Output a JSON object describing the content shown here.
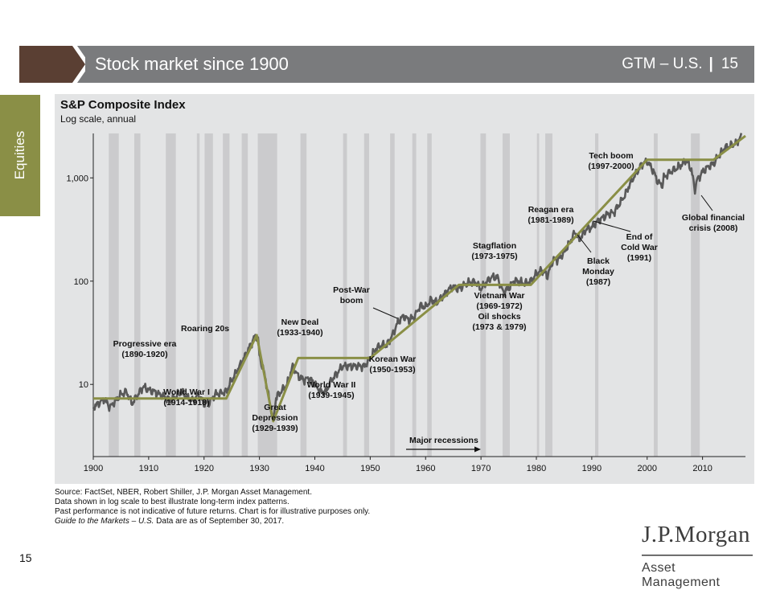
{
  "header": {
    "title": "Stock market since 1900",
    "section": "GTM – U.S.",
    "separator": "|",
    "slide_number": "15"
  },
  "side_tab": {
    "label": "Equities"
  },
  "chart_data": {
    "type": "line",
    "title": "S&P Composite Index",
    "subtitle": "Log scale, annual",
    "x_ticks": [
      "1900",
      "1910",
      "1920",
      "1930",
      "1940",
      "1950",
      "1960",
      "1970",
      "1980",
      "1990",
      "2000",
      "2010"
    ],
    "y_ticks": [
      {
        "value": 10,
        "label": "10"
      },
      {
        "value": 100,
        "label": "100"
      },
      {
        "value": 1000,
        "label": "1,000"
      }
    ],
    "y_scale": "log",
    "xlim": [
      1900,
      2017.75
    ],
    "ylim": [
      2.0,
      3000
    ],
    "grid": false,
    "recessions": [
      [
        1902.8,
        1904.6
      ],
      [
        1907.4,
        1908.5
      ],
      [
        1913.1,
        1914.9
      ],
      [
        1918.7,
        1919.2
      ],
      [
        1920.1,
        1921.6
      ],
      [
        1923.4,
        1924.6
      ],
      [
        1926.8,
        1927.9
      ],
      [
        1929.7,
        1933.2
      ],
      [
        1937.4,
        1938.5
      ],
      [
        1945.1,
        1945.8
      ],
      [
        1948.9,
        1949.8
      ],
      [
        1953.6,
        1954.4
      ],
      [
        1957.6,
        1958.3
      ],
      [
        1960.3,
        1961.1
      ],
      [
        1969.9,
        1970.9
      ],
      [
        1973.9,
        1975.2
      ],
      [
        1980.1,
        1980.5
      ],
      [
        1981.6,
        1982.9
      ],
      [
        1990.6,
        1991.2
      ],
      [
        2001.2,
        2001.9
      ],
      [
        2007.9,
        2009.5
      ]
    ],
    "index_series": {
      "name": "S&P Composite Index",
      "x": [
        1900,
        1902,
        1903,
        1905,
        1906,
        1907,
        1909,
        1910,
        1911,
        1913,
        1914,
        1916,
        1917,
        1918,
        1919,
        1920,
        1921,
        1922,
        1924,
        1925,
        1927,
        1929,
        1929.7,
        1930,
        1931,
        1932,
        1932.5,
        1933,
        1935,
        1936,
        1937,
        1938,
        1939,
        1940,
        1941,
        1942,
        1943,
        1945,
        1946,
        1947,
        1949,
        1950,
        1951,
        1952,
        1953,
        1954,
        1955,
        1956,
        1957,
        1958,
        1959,
        1960,
        1961,
        1962,
        1963,
        1964,
        1965,
        1966,
        1967,
        1968,
        1969,
        1970,
        1971,
        1972,
        1973,
        1974,
        1975,
        1976,
        1977,
        1978,
        1979,
        1980,
        1981,
        1982,
        1983,
        1984,
        1985,
        1986,
        1987,
        1987.8,
        1988,
        1989,
        1990,
        1991,
        1992,
        1993,
        1994,
        1995,
        1996,
        1997,
        1998,
        1999,
        2000,
        2001,
        2002,
        2002.8,
        2003,
        2004,
        2005,
        2006,
        2007,
        2008,
        2008.6,
        2009,
        2010,
        2011,
        2012,
        2013,
        2014,
        2015,
        2016,
        2017
      ],
      "y": [
        6.0,
        7.2,
        6.0,
        8.0,
        8.5,
        6.5,
        9.5,
        8.8,
        8.5,
        7.5,
        7.0,
        8.6,
        7.5,
        7.0,
        8.0,
        6.5,
        6.7,
        8.0,
        8.5,
        11.0,
        17.0,
        28.0,
        29.0,
        19.0,
        12.0,
        6.0,
        4.5,
        7.5,
        10.0,
        15.0,
        12.0,
        11.0,
        11.5,
        10.0,
        8.5,
        8.5,
        11.0,
        15.0,
        15.0,
        15.0,
        15.0,
        18.0,
        22.0,
        24.0,
        24.0,
        30.0,
        40.0,
        46.0,
        42.0,
        45.0,
        58.0,
        56.0,
        66.0,
        62.0,
        70.0,
        82.0,
        88.0,
        84.0,
        92.0,
        98.0,
        98.0,
        84.0,
        98.0,
        110.0,
        108.0,
        78.0,
        85.0,
        102.0,
        98.0,
        95.0,
        100.0,
        118.0,
        128.0,
        112.0,
        160.0,
        162.0,
        190.0,
        235.0,
        300.0,
        245.0,
        265.0,
        320.0,
        330.0,
        380.0,
        410.0,
        450.0,
        460.0,
        560.0,
        680.0,
        900.0,
        1100.0,
        1350.0,
        1450.0,
        1200.0,
        900.0,
        850.0,
        1000.0,
        1130.0,
        1210.0,
        1310.0,
        1480.0,
        1200.0,
        760.0,
        950.0,
        1140.0,
        1280.0,
        1380.0,
        1650.0,
        1950.0,
        2050.0,
        2150.0,
        2500.0
      ]
    },
    "trend_line": {
      "x": [
        1900,
        1924,
        1929.5,
        1932.5,
        1937,
        1950,
        1966,
        1979,
        2000,
        2012,
        2017.75
      ],
      "y": [
        7.3,
        7.3,
        30,
        4.4,
        18,
        18,
        92,
        92,
        1500,
        1500,
        2550
      ]
    },
    "annotations": [
      {
        "lines": [
          "Progressive era",
          "(1890-1920)"
        ]
      },
      {
        "lines": [
          "World War I",
          "(1914-1918)"
        ]
      },
      {
        "lines": [
          "Roaring 20s"
        ]
      },
      {
        "lines": [
          "Great",
          "Depression",
          "(1929-1939)"
        ]
      },
      {
        "lines": [
          "New Deal",
          "(1933-1940)"
        ]
      },
      {
        "lines": [
          "World War II",
          "(1939-1945)"
        ]
      },
      {
        "lines": [
          "Post-War",
          "boom"
        ]
      },
      {
        "lines": [
          "Korean War",
          "(1950-1953)"
        ]
      },
      {
        "lines": [
          "Stagflation",
          "(1973-1975)"
        ]
      },
      {
        "lines": [
          "Vietnam War",
          "(1969-1972)",
          "Oil shocks",
          "(1973 & 1979)"
        ]
      },
      {
        "lines": [
          "Reagan era",
          "(1981-1989)"
        ]
      },
      {
        "lines": [
          "Black",
          "Monday",
          "(1987)"
        ]
      },
      {
        "lines": [
          "End of",
          "Cold War",
          "(1991)"
        ]
      },
      {
        "lines": [
          "Tech boom",
          "(1997-2000)"
        ]
      },
      {
        "lines": [
          "Global financial",
          "crisis (2008)"
        ]
      }
    ],
    "recession_label": "Major recessions",
    "colors": {
      "panel": "#e3e4e5",
      "recession": "#cbcbcd",
      "index": "#595959",
      "trend": "#8a8f46"
    }
  },
  "footnotes": [
    "Source: FactSet, NBER, Robert Shiller, J.P. Morgan Asset Management.",
    "Data shown in log scale to best illustrate long-term index patterns.",
    "Past performance is not indicative of future returns. Chart is for illustrative purposes only."
  ],
  "footnote_guide": {
    "italic": "Guide to the Markets – U.S.",
    "rest": " Data are as of September 30, 2017."
  },
  "page_number": "15",
  "logo": {
    "line1": "J.P.Morgan",
    "line2": "Asset Management"
  }
}
